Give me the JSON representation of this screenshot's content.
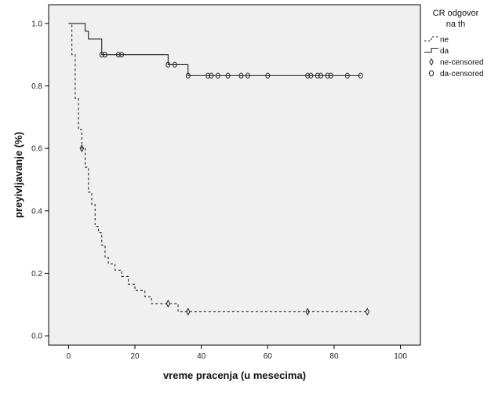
{
  "chart_data": {
    "type": "line",
    "step": true,
    "xlabel": "vreme pracenja (u mesecima)",
    "ylabel": "preyivljavanje (%)",
    "xlim": [
      -6,
      106
    ],
    "ylim": [
      -0.03,
      1.06
    ],
    "xticks": [
      0,
      20,
      40,
      60,
      80,
      100
    ],
    "yticks": [
      0.0,
      0.2,
      0.4,
      0.6,
      0.8,
      1.0
    ],
    "yticks_labels": [
      "0.0",
      "0.2",
      "0.4",
      "0.6",
      "0.8",
      "1.0"
    ],
    "grid": false,
    "plot_background": "#f0f0f0",
    "legend": {
      "title_line1": "CR odgovor",
      "title_line2": "na th",
      "placement": "top-right, outside plot",
      "entries": [
        {
          "label": "ne",
          "kind": "line",
          "style": "dashed"
        },
        {
          "label": "da",
          "kind": "line",
          "style": "solid"
        },
        {
          "label": "ne-censored",
          "kind": "marker",
          "marker": "diamond"
        },
        {
          "label": "da-censored",
          "kind": "marker",
          "marker": "ellipse"
        }
      ]
    },
    "series": [
      {
        "name": "ne",
        "style": "dashed",
        "steps": [
          [
            0,
            1.0
          ],
          [
            1,
            0.9
          ],
          [
            2,
            0.76
          ],
          [
            3,
            0.66
          ],
          [
            4,
            0.6
          ],
          [
            5,
            0.54
          ],
          [
            6,
            0.46
          ],
          [
            7,
            0.42
          ],
          [
            8,
            0.35
          ],
          [
            9,
            0.33
          ],
          [
            10,
            0.29
          ],
          [
            11,
            0.25
          ],
          [
            12,
            0.23
          ],
          [
            14,
            0.21
          ],
          [
            16,
            0.19
          ],
          [
            18,
            0.165
          ],
          [
            20,
            0.145
          ],
          [
            23,
            0.125
          ],
          [
            25,
            0.103
          ],
          [
            31,
            0.103
          ],
          [
            33,
            0.077
          ],
          [
            90,
            0.077
          ]
        ],
        "censored": [
          [
            4,
            0.6
          ],
          [
            30,
            0.103
          ],
          [
            36,
            0.077
          ],
          [
            72,
            0.077
          ],
          [
            90,
            0.077
          ]
        ]
      },
      {
        "name": "da",
        "style": "solid",
        "steps": [
          [
            0,
            1.0
          ],
          [
            5,
            0.975
          ],
          [
            6,
            0.95
          ],
          [
            10,
            0.9
          ],
          [
            30,
            0.868
          ],
          [
            36,
            0.833
          ],
          [
            88,
            0.833
          ]
        ],
        "censored": [
          [
            10,
            0.9
          ],
          [
            11,
            0.9
          ],
          [
            15,
            0.9
          ],
          [
            16,
            0.9
          ],
          [
            30,
            0.868
          ],
          [
            32,
            0.868
          ],
          [
            36,
            0.833
          ],
          [
            42,
            0.833
          ],
          [
            43,
            0.833
          ],
          [
            45,
            0.833
          ],
          [
            48,
            0.833
          ],
          [
            52,
            0.833
          ],
          [
            54,
            0.833
          ],
          [
            60,
            0.833
          ],
          [
            72,
            0.833
          ],
          [
            73,
            0.833
          ],
          [
            75,
            0.833
          ],
          [
            76,
            0.833
          ],
          [
            78,
            0.833
          ],
          [
            79,
            0.833
          ],
          [
            84,
            0.833
          ],
          [
            88,
            0.833
          ]
        ]
      }
    ]
  }
}
